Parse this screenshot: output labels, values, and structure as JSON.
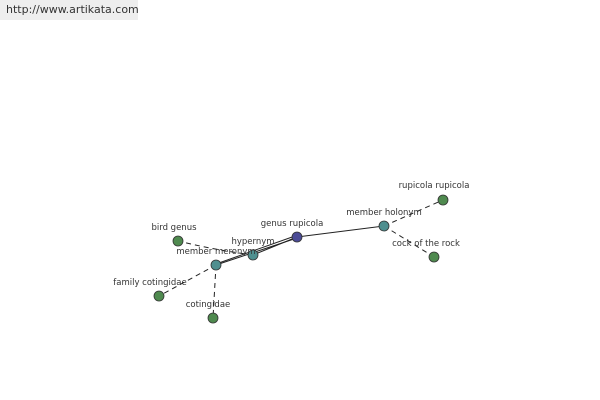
{
  "header": {
    "url": "http://www.artikata.com"
  },
  "nodes": [
    {
      "label": "genus rupicola"
    },
    {
      "label": "hypernym"
    },
    {
      "label": "member meronym"
    },
    {
      "label": "member holonym"
    },
    {
      "label": "bird genus"
    },
    {
      "label": "family cotingidae"
    },
    {
      "label": "cotingidae"
    },
    {
      "label": "rupicola rupicola"
    },
    {
      "label": "cock of the rock"
    }
  ]
}
